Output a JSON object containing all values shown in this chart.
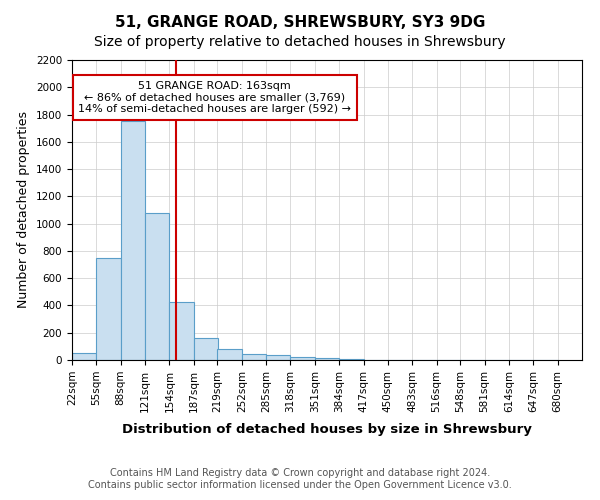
{
  "title": "51, GRANGE ROAD, SHREWSBURY, SY3 9DG",
  "subtitle": "Size of property relative to detached houses in Shrewsbury",
  "xlabel": "Distribution of detached houses by size in Shrewsbury",
  "ylabel": "Number of detached properties",
  "footer_line1": "Contains HM Land Registry data © Crown copyright and database right 2024.",
  "footer_line2": "Contains public sector information licensed under the Open Government Licence v3.0.",
  "bin_labels": [
    "22sqm",
    "55sqm",
    "88sqm",
    "121sqm",
    "154sqm",
    "187sqm",
    "219sqm",
    "252sqm",
    "285sqm",
    "318sqm",
    "351sqm",
    "384sqm",
    "417sqm",
    "450sqm",
    "483sqm",
    "516sqm",
    "548sqm",
    "581sqm",
    "614sqm",
    "647sqm",
    "680sqm"
  ],
  "bin_edges": [
    22,
    55,
    88,
    121,
    154,
    187,
    219,
    252,
    285,
    318,
    351,
    384,
    417,
    450,
    483,
    516,
    548,
    581,
    614,
    647,
    680
  ],
  "bar_heights": [
    55,
    750,
    1750,
    1075,
    425,
    160,
    80,
    45,
    35,
    25,
    15,
    10,
    0,
    0,
    0,
    0,
    0,
    0,
    0,
    0
  ],
  "bar_color": "#c9dff0",
  "bar_edge_color": "#5a9ec9",
  "property_size": 163,
  "vline_color": "#cc0000",
  "annotation_title": "51 GRANGE ROAD: 163sqm",
  "annotation_line1": "← 86% of detached houses are smaller (3,769)",
  "annotation_line2": "14% of semi-detached houses are larger (592) →",
  "annotation_box_color": "#ffffff",
  "annotation_border_color": "#cc0000",
  "ylim": [
    0,
    2200
  ],
  "yticks": [
    0,
    200,
    400,
    600,
    800,
    1000,
    1200,
    1400,
    1600,
    1800,
    2000,
    2200
  ],
  "background_color": "#ffffff",
  "grid_color": "#cccccc",
  "title_fontsize": 11,
  "subtitle_fontsize": 10,
  "axis_label_fontsize": 9,
  "tick_fontsize": 7.5,
  "footer_fontsize": 7,
  "annotation_fontsize": 8
}
